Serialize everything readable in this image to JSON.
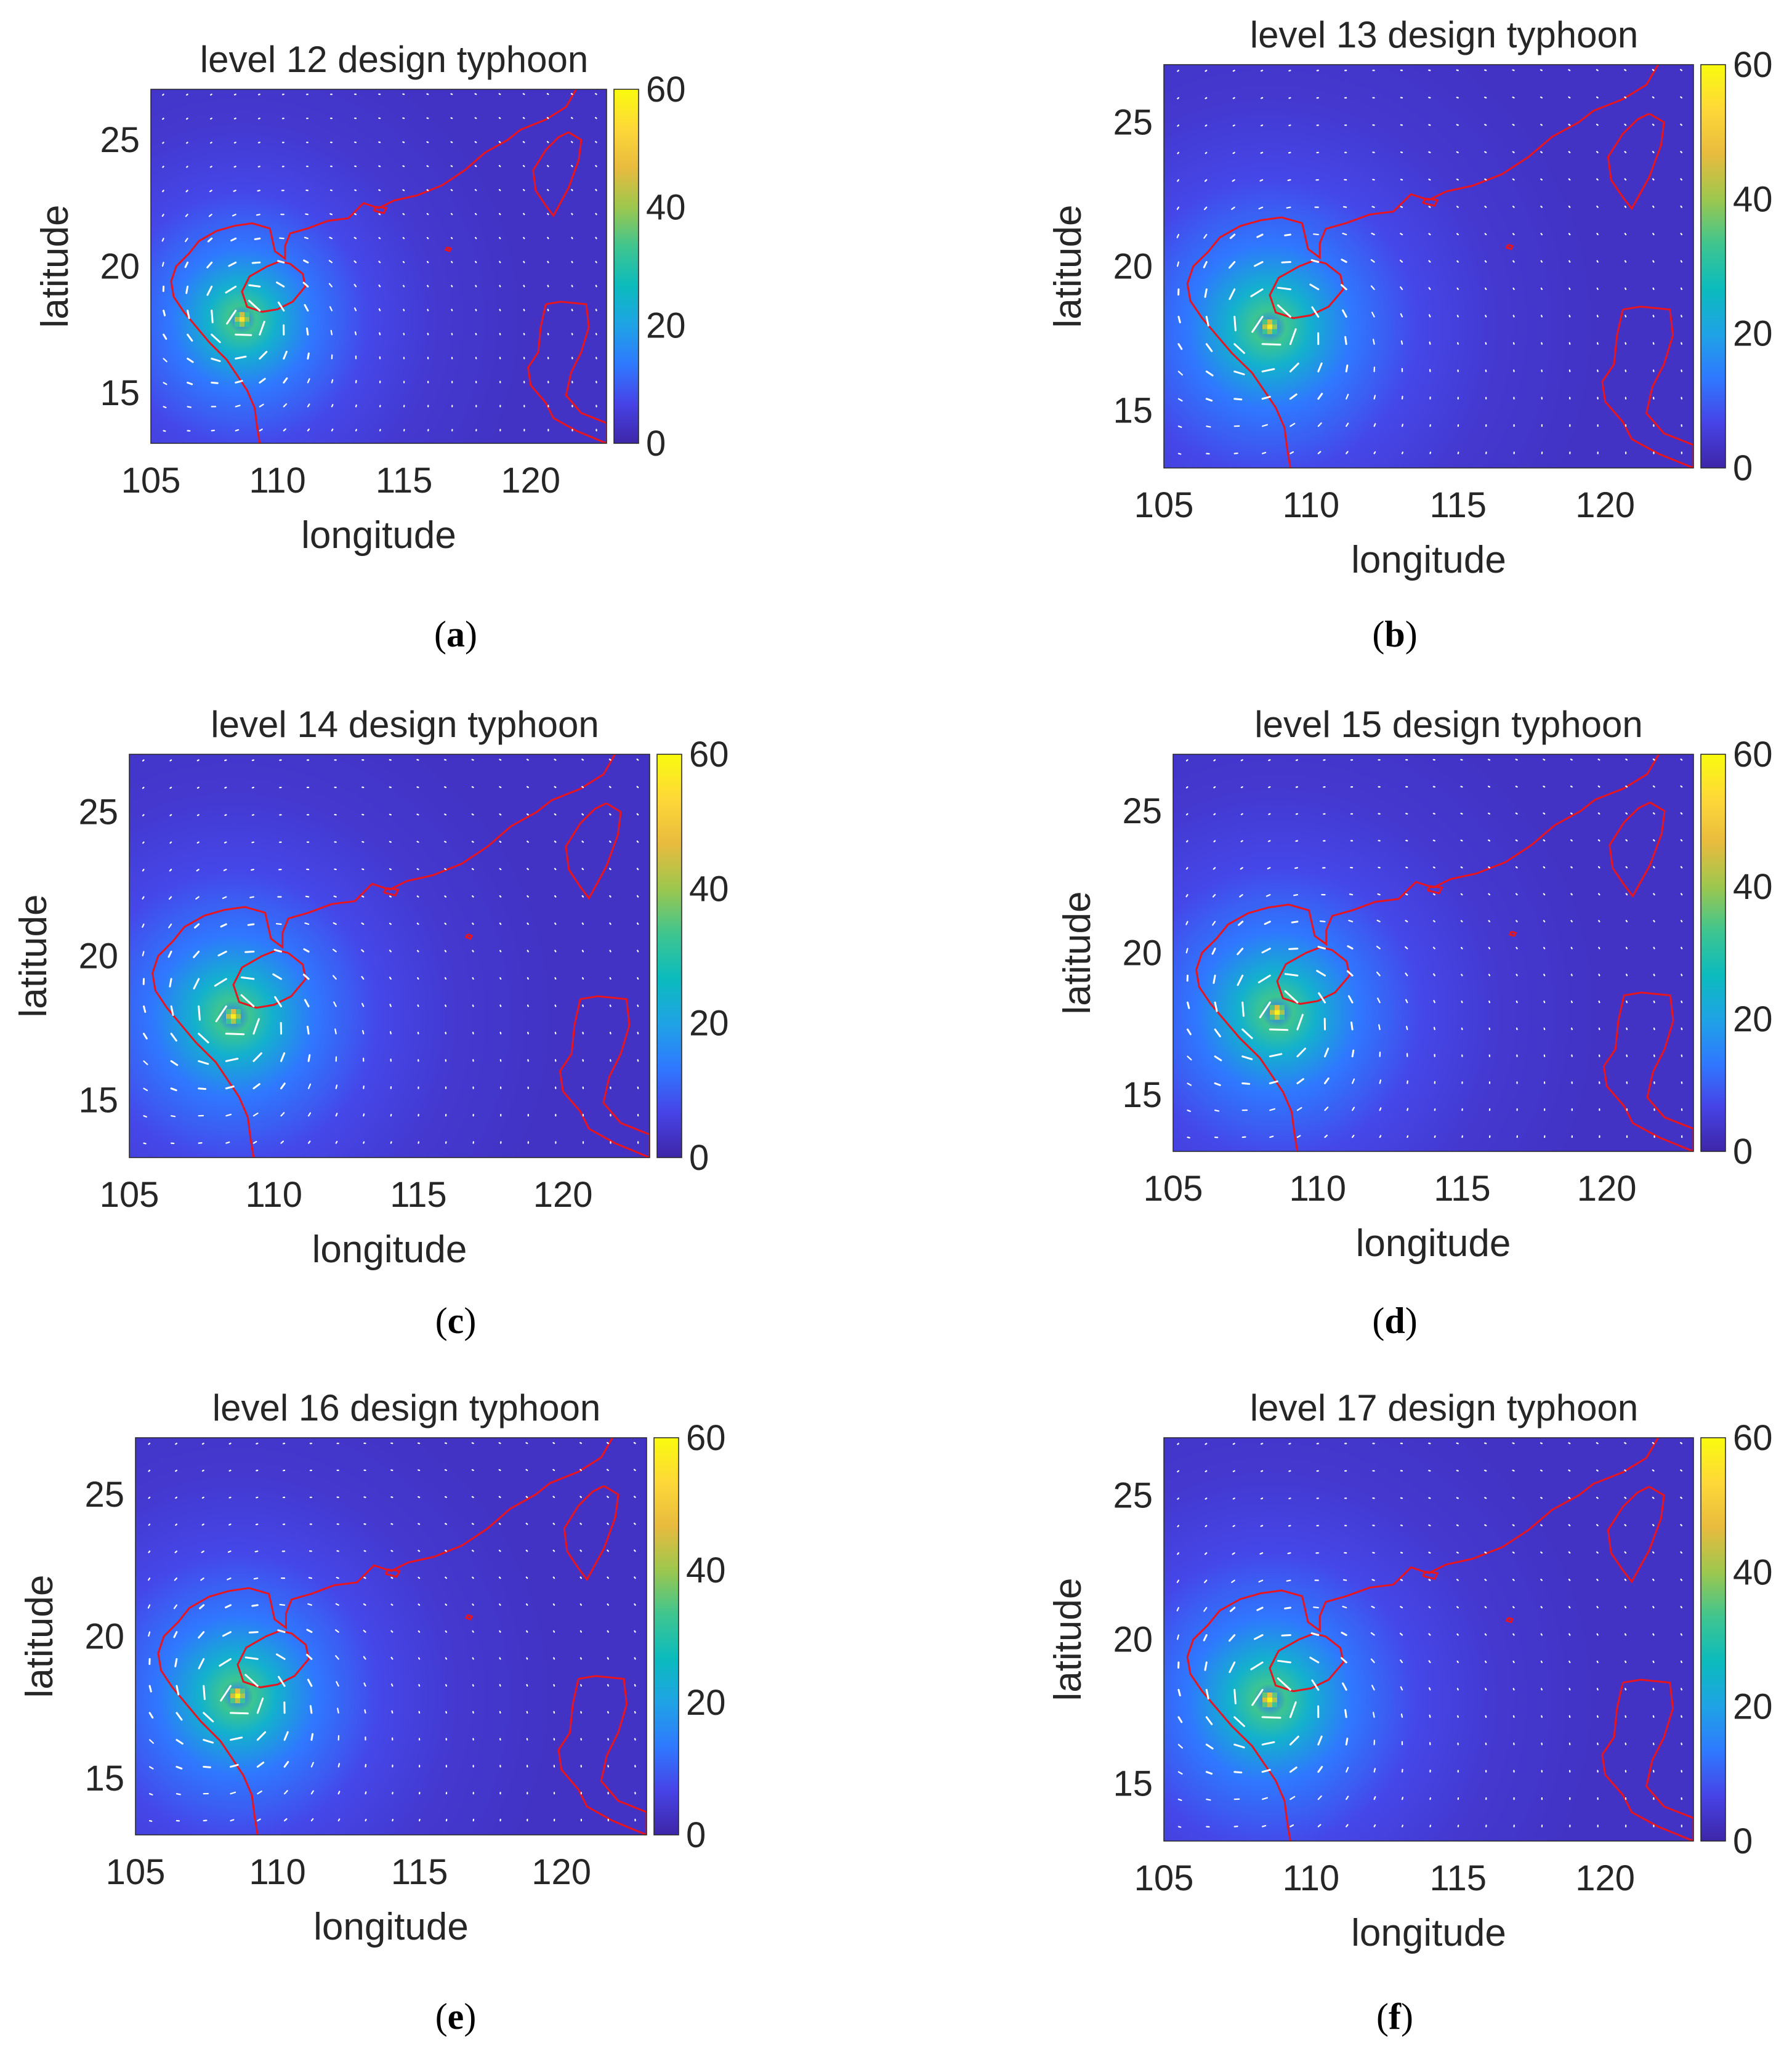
{
  "figure": {
    "colorbar_colors": [
      "#3e26a8",
      "#4743e6",
      "#2f79ff",
      "#1fa3e5",
      "#0bbbbd",
      "#3fc58f",
      "#9dc74e",
      "#e8bb3e",
      "#fed838",
      "#f9fb0e"
    ],
    "field_color": "#3e2fb4",
    "coast_color": "#e8141e",
    "arrow_color": "#ffffff"
  },
  "chart_data": [
    {
      "type": "heatmap",
      "title": "level 12 design typhoon",
      "caption_letter": "a",
      "xlabel": "longitude",
      "ylabel": "latitude",
      "xlim": [
        105,
        123
      ],
      "ylim": [
        13,
        27
      ],
      "xticks": [
        "105",
        "110",
        "115",
        "120"
      ],
      "yticks": [
        "15",
        "20",
        "25"
      ],
      "colorbar": {
        "range": [
          0,
          60
        ],
        "ticks": [
          "0",
          "20",
          "40",
          "60"
        ]
      },
      "eye": {
        "lon": 108.6,
        "lat": 17.9,
        "max_wind": 55
      }
    },
    {
      "type": "heatmap",
      "title": "level 13 design typhoon",
      "caption_letter": "b",
      "xlabel": "longitude",
      "ylabel": "latitude",
      "xlim": [
        105,
        123
      ],
      "ylim": [
        13,
        27
      ],
      "xticks": [
        "105",
        "110",
        "115",
        "120"
      ],
      "yticks": [
        "15",
        "20",
        "25"
      ],
      "colorbar": {
        "range": [
          0,
          60
        ],
        "ticks": [
          "0",
          "20",
          "40",
          "60"
        ]
      },
      "eye": {
        "lon": 108.6,
        "lat": 17.9,
        "max_wind": 56
      }
    },
    {
      "type": "heatmap",
      "title": "level 14 design typhoon",
      "caption_letter": "c",
      "xlabel": "longitude",
      "ylabel": "latitude",
      "xlim": [
        105,
        123
      ],
      "ylim": [
        13,
        27
      ],
      "xticks": [
        "105",
        "110",
        "115",
        "120"
      ],
      "yticks": [
        "15",
        "20",
        "25"
      ],
      "colorbar": {
        "range": [
          0,
          60
        ],
        "ticks": [
          "0",
          "20",
          "40",
          "60"
        ]
      },
      "eye": {
        "lon": 108.6,
        "lat": 17.9,
        "max_wind": 57
      }
    },
    {
      "type": "heatmap",
      "title": "level 15 design typhoon",
      "caption_letter": "d",
      "xlabel": "longitude",
      "ylabel": "latitude",
      "xlim": [
        105,
        123
      ],
      "ylim": [
        13,
        27
      ],
      "xticks": [
        "105",
        "110",
        "115",
        "120"
      ],
      "yticks": [
        "15",
        "20",
        "25"
      ],
      "colorbar": {
        "range": [
          0,
          60
        ],
        "ticks": [
          "0",
          "20",
          "40",
          "60"
        ]
      },
      "eye": {
        "lon": 108.6,
        "lat": 17.9,
        "max_wind": 58
      }
    },
    {
      "type": "heatmap",
      "title": "level 16 design typhoon",
      "caption_letter": "e",
      "xlabel": "longitude",
      "ylabel": "latitude",
      "xlim": [
        105,
        123
      ],
      "ylim": [
        13,
        27
      ],
      "xticks": [
        "105",
        "110",
        "115",
        "120"
      ],
      "yticks": [
        "15",
        "20",
        "25"
      ],
      "colorbar": {
        "range": [
          0,
          60
        ],
        "ticks": [
          "0",
          "20",
          "40",
          "60"
        ]
      },
      "eye": {
        "lon": 108.6,
        "lat": 17.9,
        "max_wind": 59
      }
    },
    {
      "type": "heatmap",
      "title": "level 17 design typhoon",
      "caption_letter": "f",
      "xlabel": "longitude",
      "ylabel": "latitude",
      "xlim": [
        105,
        123
      ],
      "ylim": [
        13,
        27
      ],
      "xticks": [
        "105",
        "110",
        "115",
        "120"
      ],
      "yticks": [
        "15",
        "20",
        "25"
      ],
      "colorbar": {
        "range": [
          0,
          60
        ],
        "ticks": [
          "0",
          "20",
          "40",
          "60"
        ]
      },
      "eye": {
        "lon": 108.6,
        "lat": 17.9,
        "max_wind": 60
      }
    }
  ]
}
